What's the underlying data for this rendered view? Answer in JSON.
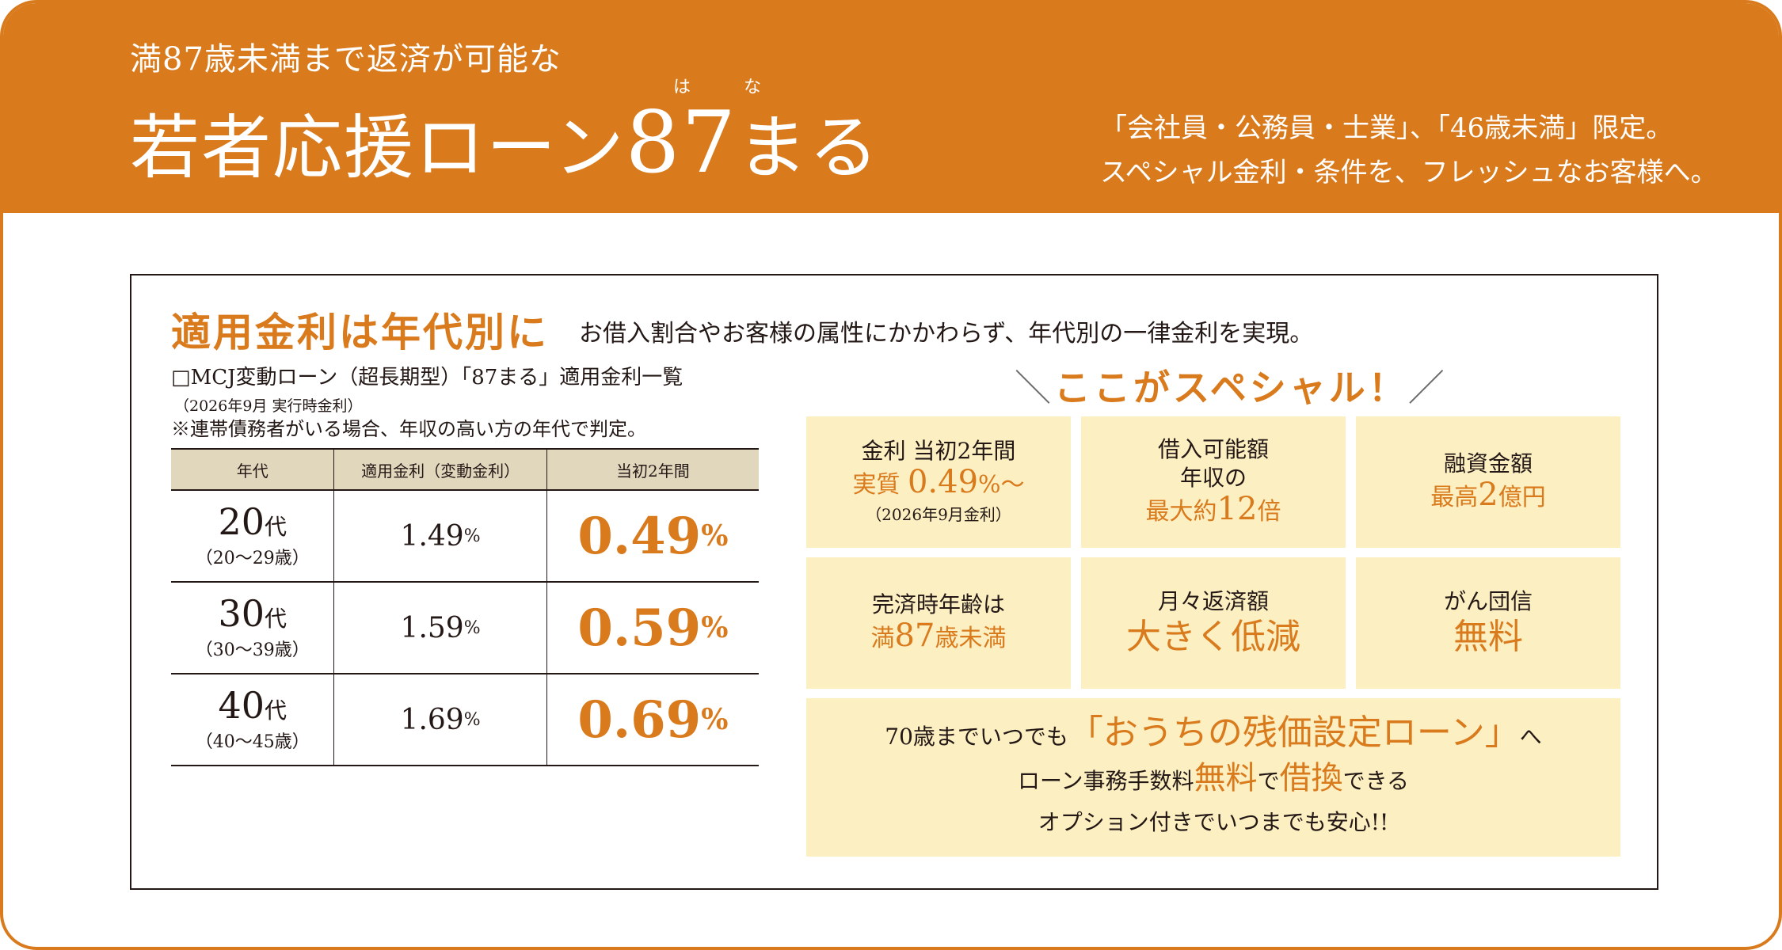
{
  "header": {
    "pre_title": "満87歳未満まで返済が可能な",
    "ruby_1": "は",
    "ruby_2": "な",
    "title_main": "若者応援ローン",
    "title_num": "87",
    "title_tail": "まる",
    "tagline_1": "「会社員・公務員・士業」、「46歳未満」限定。",
    "tagline_2": "スペシャル金利・条件を、フレッシュなお客様へ。"
  },
  "section": {
    "title": "適用金利は年代別に",
    "description": "お借入割合やお客様の属性にかかわらず、年代別の一律金利を実現。",
    "list_title": "□MCJ変動ローン（超長期型）「87まる」適用金利一覧",
    "date_note": "（2026年9月 実行時金利）",
    "note": "※連帯債務者がいる場合、年収の高い方の年代で判定。"
  },
  "table": {
    "headers": [
      "年代",
      "適用金利（変動金利）",
      "当初2年間"
    ],
    "rows": [
      {
        "age_num": "20",
        "age_unit": "代",
        "age_range": "（20〜29歳）",
        "variable_rate": "1.49",
        "initial_rate": "0.49",
        "pct": "%"
      },
      {
        "age_num": "30",
        "age_unit": "代",
        "age_range": "（30〜39歳）",
        "variable_rate": "1.59",
        "initial_rate": "0.59",
        "pct": "%"
      },
      {
        "age_num": "40",
        "age_unit": "代",
        "age_range": "（40〜45歳）",
        "variable_rate": "1.69",
        "initial_rate": "0.69",
        "pct": "%"
      }
    ]
  },
  "special": {
    "title": "ここがスペシャル！",
    "slash_left": "＼",
    "slash_right": "／",
    "box_rate": {
      "label": "金利 当初2年間",
      "prefix": "実質 ",
      "value": "0.49",
      "suffix": "%〜",
      "note": "（2026年9月金利）"
    },
    "box_borrow": {
      "label_1": "借入可能額",
      "label_2": "年収の",
      "prefix": "最大約",
      "value": "12",
      "suffix": "倍"
    },
    "box_loan": {
      "label": "融資金額",
      "prefix": "最高",
      "value": "2",
      "suffix": "億円"
    },
    "box_age": {
      "label": "完済時年齢は",
      "prefix": "満",
      "value": "87",
      "suffix": "歳未満"
    },
    "box_monthly": {
      "label": "月々返済額",
      "value": "大きく低減"
    },
    "box_cancer": {
      "label": "がん団信",
      "value": "無料"
    },
    "box_wide": {
      "l1_pre": "70歳までいつでも",
      "l1_hl": "「おうちの残価設定ローン」",
      "l1_post": "へ",
      "l2_pre": "ローン事務手数料",
      "l2_hl1": "無料",
      "l2_mid": "で",
      "l2_hl2": "借換",
      "l2_post": "できる",
      "l3": "オプション付きでいつまでも安心!!"
    }
  },
  "colors": {
    "accent": "#d97a1c",
    "box_bg": "#fcefc2",
    "table_header_bg": "#e1d7bd",
    "text": "#231815"
  }
}
